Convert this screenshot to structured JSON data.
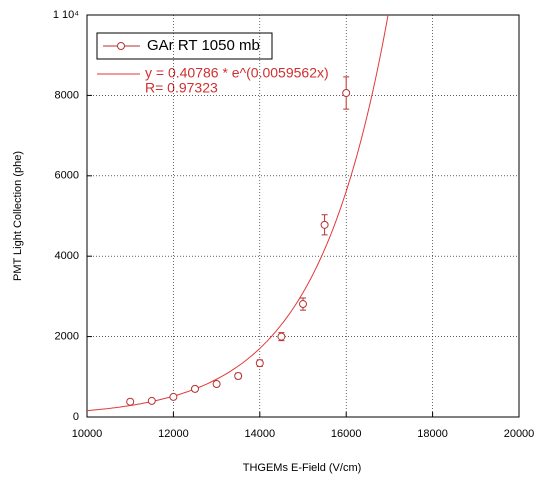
{
  "chart_data": {
    "type": "scatter",
    "x_label": "THGEMs E-Field (V/cm)",
    "y_label": "PMT Light Collection  (phe)",
    "series": [
      {
        "name": "GAr RT 1050 mb",
        "color": "#b83232",
        "x": [
          11000,
          11500,
          12000,
          12500,
          13000,
          13500,
          14000,
          14500,
          15000,
          15500,
          16000
        ],
        "values": [
          380,
          400,
          500,
          700,
          820,
          1020,
          1340,
          2000,
          2810,
          4780,
          8060
        ],
        "errors": [
          50,
          50,
          50,
          60,
          60,
          70,
          80,
          100,
          150,
          250,
          400
        ]
      }
    ],
    "fit": {
      "label": "y = 0.40786 * e^(0.0059562x)",
      "r_label": "R= 0.97323",
      "a": 0.40786,
      "b": 0.0059562,
      "color": "#e03a3a"
    },
    "xlim": [
      10000,
      20000
    ],
    "xticks": [
      10000,
      12000,
      14000,
      16000,
      18000,
      20000
    ],
    "ylim": [
      0,
      10000
    ],
    "yticks": [
      0,
      2000,
      4000,
      6000,
      8000,
      {
        "value": 10000,
        "label": "1 10⁴"
      }
    ],
    "grid": true
  }
}
